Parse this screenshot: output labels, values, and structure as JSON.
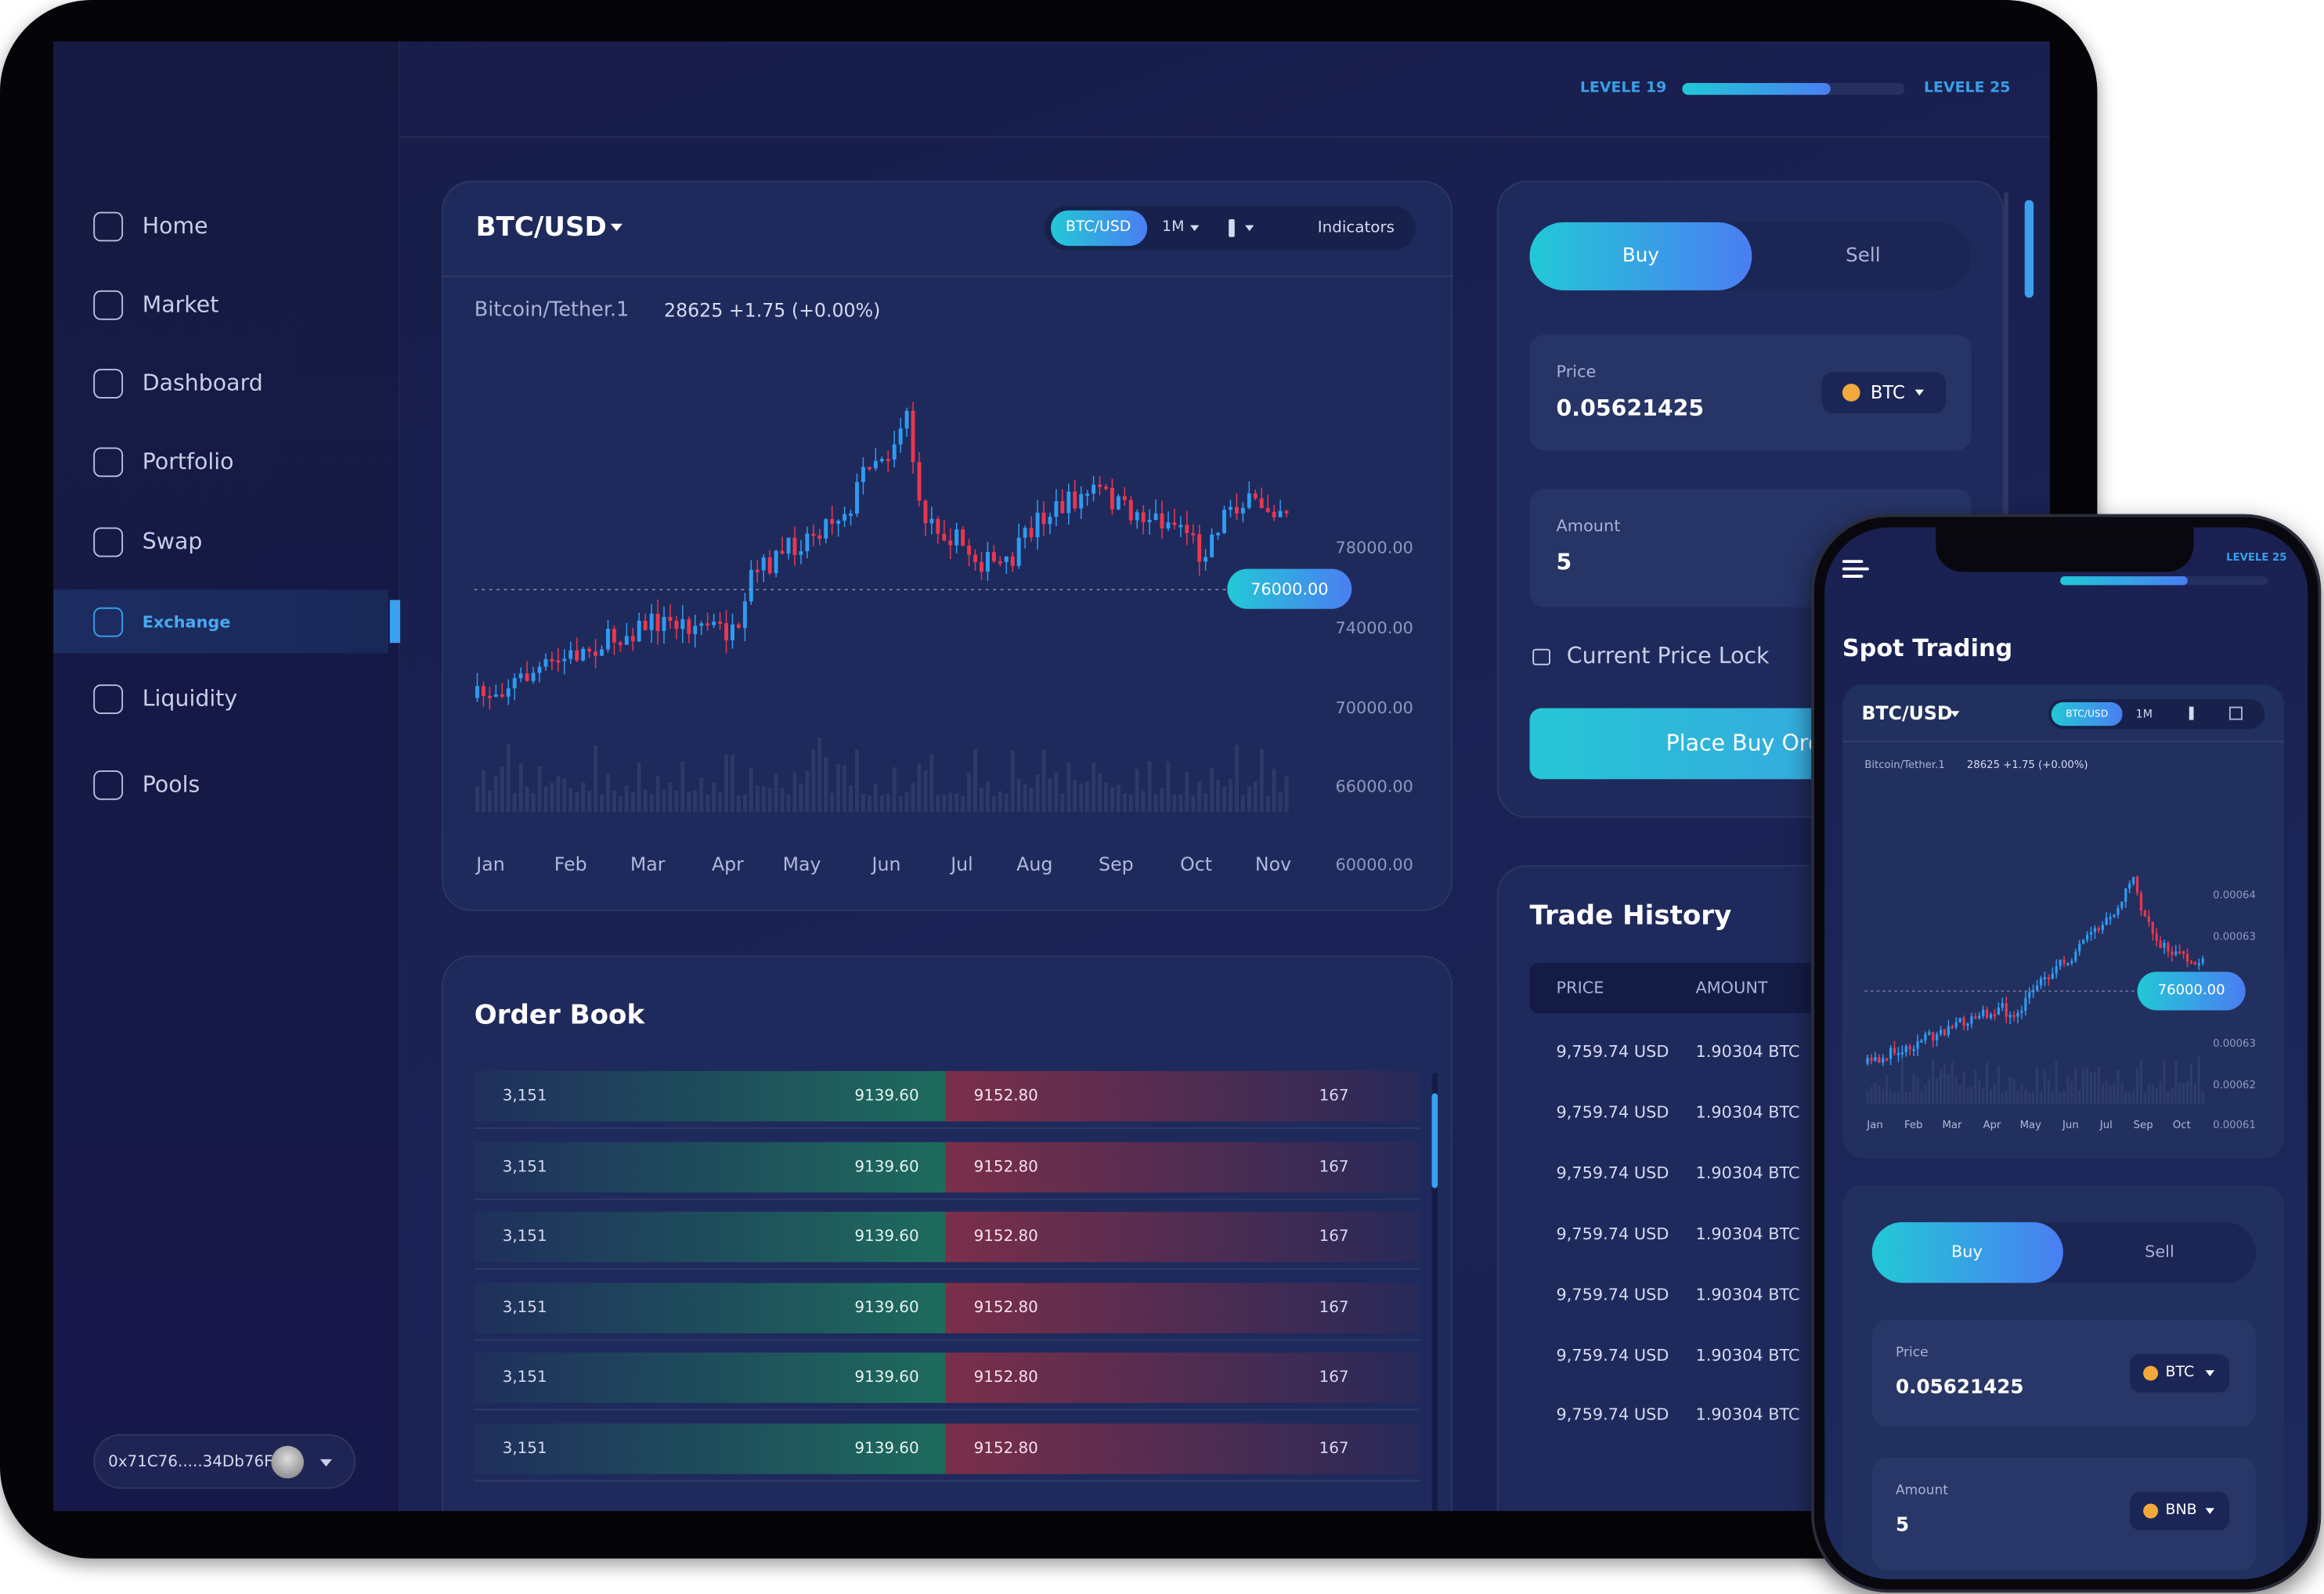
{
  "header": {
    "level_start": "LEVELE 19",
    "level_end": "LEVELE 25"
  },
  "sidebar": {
    "nav": [
      "Home",
      "Market",
      "Dashboard",
      "Portfolio",
      "Swap",
      "Exchange",
      "Liquidity",
      "Pools"
    ],
    "wallet": "0x71C76.....34Db76F"
  },
  "chart": {
    "pair": "BTC/USD",
    "tabs": [
      "BTC/USD",
      "1M"
    ],
    "indicators": "Indicators",
    "symbol": "Bitcoin/Tether.1",
    "quote": "28625 +1.75 (+0.00%)",
    "price_tag": "76000.00",
    "y_labels": [
      "78000.00",
      "74000.00",
      "70000.00",
      "66000.00",
      "60000.00"
    ],
    "months": [
      "Jan",
      "Feb",
      "Mar",
      "Apr",
      "May",
      "Jun",
      "Jul",
      "Aug",
      "Sep",
      "Oct",
      "Nov"
    ]
  },
  "order_form": {
    "buy": "Buy",
    "sell": "Sell",
    "price_label": "Price",
    "price": "0.05621425",
    "coin": "BTC",
    "amount_label": "Amount",
    "amount": "5",
    "lock": "Current Price Lock",
    "button": "Place Buy Order"
  },
  "order_book": {
    "title": "Order Book",
    "rows": [
      [
        "3,151",
        "9139.60",
        "9152.80",
        "167"
      ],
      [
        "3,151",
        "9139.60",
        "9152.80",
        "167"
      ],
      [
        "3,151",
        "9139.60",
        "9152.80",
        "167"
      ],
      [
        "3,151",
        "9139.60",
        "9152.80",
        "167"
      ],
      [
        "3,151",
        "9139.60",
        "9152.80",
        "167"
      ],
      [
        "3,151",
        "9139.60",
        "9152.80",
        "167"
      ]
    ]
  },
  "trade_history": {
    "title": "Trade History",
    "columns": [
      "PRICE",
      "AMOUNT"
    ],
    "rows": [
      [
        "9,759.74 USD",
        "1.90304 BTC"
      ],
      [
        "9,759.74 USD",
        "1.90304 BTC"
      ],
      [
        "9,759.74 USD",
        "1.90304 BTC"
      ],
      [
        "9,759.74 USD",
        "1.90304 BTC"
      ],
      [
        "9,759.74 USD",
        "1.90304 BTC"
      ],
      [
        "9,759.74 USD",
        "1.90304 BTC"
      ],
      [
        "9,759.74 USD",
        "1.90304 BTC"
      ]
    ]
  },
  "phone": {
    "level_end": "LEVELE 25",
    "title": "Spot Trading",
    "pair": "BTC/USD",
    "tabs": [
      "BTC/USD",
      "1M"
    ],
    "symbol": "Bitcoin/Tether.1",
    "quote": "28625 +1.75 (+0.00%)",
    "price_tag": "76000.00",
    "y_labels": [
      "0.00064",
      "0.00063",
      "0.00063",
      "0.00062",
      "0.00061"
    ],
    "months": [
      "Jan",
      "Feb",
      "Mar",
      "Apr",
      "May",
      "Jun",
      "Jul",
      "Sep",
      "Oct"
    ],
    "buy": "Buy",
    "sell": "Sell",
    "price_label": "Price",
    "price": "0.05621425",
    "coin": "BTC",
    "amount_label": "Amount",
    "amount": "5",
    "amount_coin": "BNB"
  }
}
